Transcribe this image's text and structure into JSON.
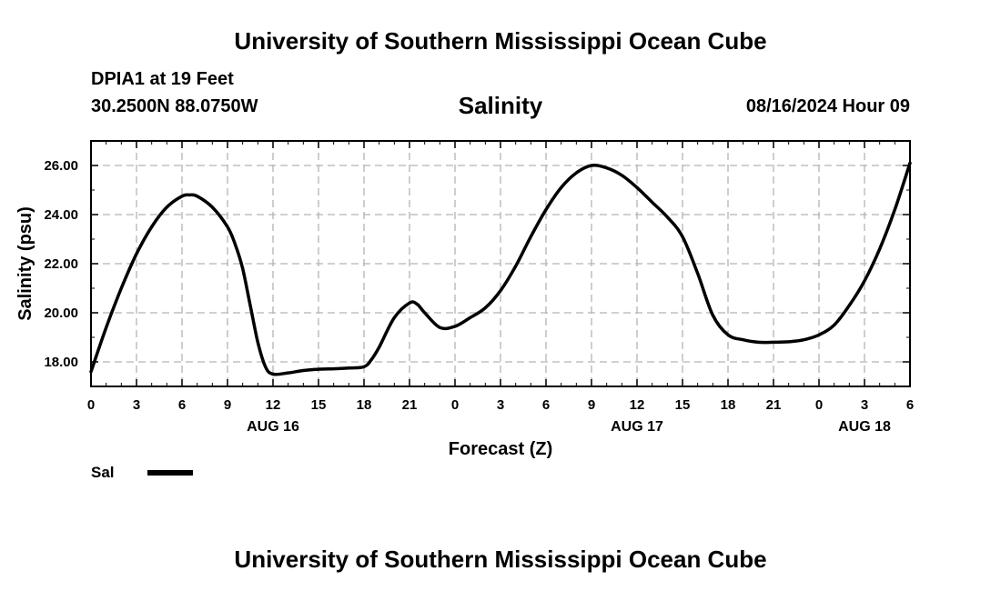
{
  "header": {
    "title": "University of Southern Mississippi Ocean Cube",
    "station": "DPIA1 at 19 Feet",
    "coords": "30.2500N  88.0750W",
    "variable": "Salinity",
    "timestamp": "08/16/2024 Hour 09"
  },
  "footer": {
    "title": "University of Southern Mississippi Ocean Cube"
  },
  "legend": {
    "label": "Sal",
    "color": "#000000"
  },
  "chart_data": {
    "type": "line",
    "title": "Salinity",
    "xlabel": "Forecast (Z)",
    "ylabel": "Salinity (psu)",
    "xlim": [
      0,
      54
    ],
    "ylim": [
      17,
      27
    ],
    "y_ticks": [
      "18.00",
      "20.00",
      "22.00",
      "24.00",
      "26.00"
    ],
    "y_tick_values": [
      18,
      20,
      22,
      24,
      26
    ],
    "x_ticks": [
      "0",
      "3",
      "6",
      "9",
      "12",
      "15",
      "18",
      "21",
      "0",
      "3",
      "6",
      "9",
      "12",
      "15",
      "18",
      "21",
      "0",
      "3",
      "6"
    ],
    "x_tick_values": [
      0,
      3,
      6,
      9,
      12,
      15,
      18,
      21,
      24,
      27,
      30,
      33,
      36,
      39,
      42,
      45,
      48,
      51,
      54
    ],
    "date_labels": [
      {
        "label": "AUG 16",
        "hour": 12
      },
      {
        "label": "AUG 17",
        "hour": 36
      },
      {
        "label": "AUG 18",
        "hour": 51
      }
    ],
    "grid": true,
    "series": [
      {
        "name": "Sal",
        "x": [
          0,
          1,
          2,
          3,
          4,
          5,
          6,
          6.5,
          7,
          8,
          9,
          9.5,
          10,
          10.5,
          11,
          11.5,
          12,
          13,
          14,
          15,
          16,
          17,
          18,
          18.5,
          19,
          20,
          21,
          21.5,
          22,
          23,
          24,
          25,
          26,
          27,
          28,
          29,
          30,
          31,
          32,
          33,
          34,
          35,
          36,
          37,
          38,
          39,
          40,
          41,
          42,
          43,
          44,
          45,
          46,
          47,
          48,
          49,
          50,
          51,
          52,
          53,
          54
        ],
        "y": [
          17.6,
          19.4,
          21.0,
          22.4,
          23.5,
          24.3,
          24.75,
          24.8,
          24.75,
          24.3,
          23.5,
          22.8,
          21.8,
          20.3,
          18.8,
          17.8,
          17.5,
          17.55,
          17.65,
          17.7,
          17.72,
          17.75,
          17.8,
          18.1,
          18.6,
          19.8,
          20.4,
          20.35,
          20.0,
          19.4,
          19.45,
          19.8,
          20.2,
          20.9,
          21.9,
          23.1,
          24.2,
          25.1,
          25.7,
          26.0,
          25.9,
          25.6,
          25.1,
          24.5,
          23.9,
          23.1,
          21.6,
          19.9,
          19.1,
          18.9,
          18.8,
          18.8,
          18.82,
          18.9,
          19.1,
          19.5,
          20.3,
          21.3,
          22.6,
          24.2,
          26.1
        ]
      }
    ]
  }
}
